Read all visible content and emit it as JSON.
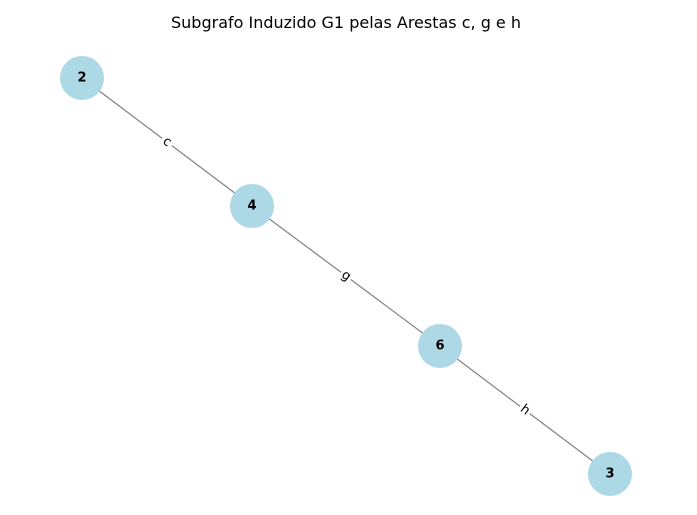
{
  "title": "Subgrafo Induzido G1 pelas Arestas c, g e h",
  "colors": {
    "node_fill": "#add8e6",
    "edge_stroke": "#808080",
    "label_background": "#ffffff"
  },
  "nodes": [
    {
      "id": "2",
      "label": "2"
    },
    {
      "id": "4",
      "label": "4"
    },
    {
      "id": "6",
      "label": "6"
    },
    {
      "id": "3",
      "label": "3"
    }
  ],
  "edges": [
    {
      "source": "2",
      "target": "4",
      "label": "c"
    },
    {
      "source": "4",
      "target": "6",
      "label": "g"
    },
    {
      "source": "6",
      "target": "3",
      "label": "h"
    }
  ]
}
